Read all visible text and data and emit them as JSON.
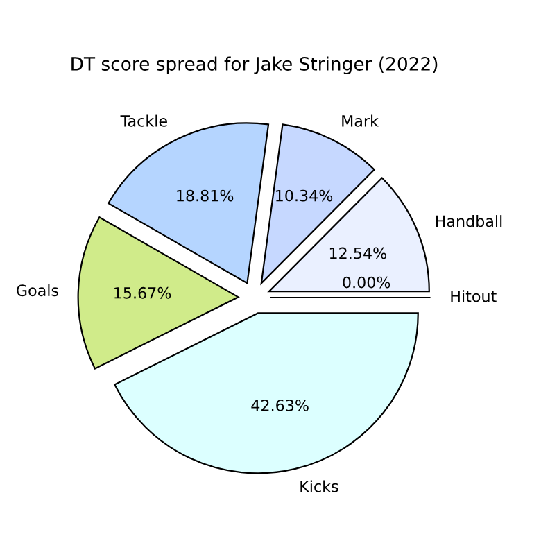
{
  "chart_data": {
    "type": "pie",
    "title": "DT score spread for Jake Stringer (2022)",
    "categories": [
      "Handball",
      "Mark",
      "Tackle",
      "Goals",
      "Kicks",
      "Hitout"
    ],
    "values": [
      12.54,
      10.34,
      18.81,
      15.67,
      42.63,
      0.0
    ],
    "value_labels": [
      "12.54%",
      "10.34%",
      "18.81%",
      "15.67%",
      "42.63%",
      "0.00%"
    ],
    "colors": [
      "#eaf0ff",
      "#c6d8ff",
      "#b5d5ff",
      "#d0eb8a",
      "#dcffff",
      "#ffffff"
    ],
    "legend": false
  }
}
